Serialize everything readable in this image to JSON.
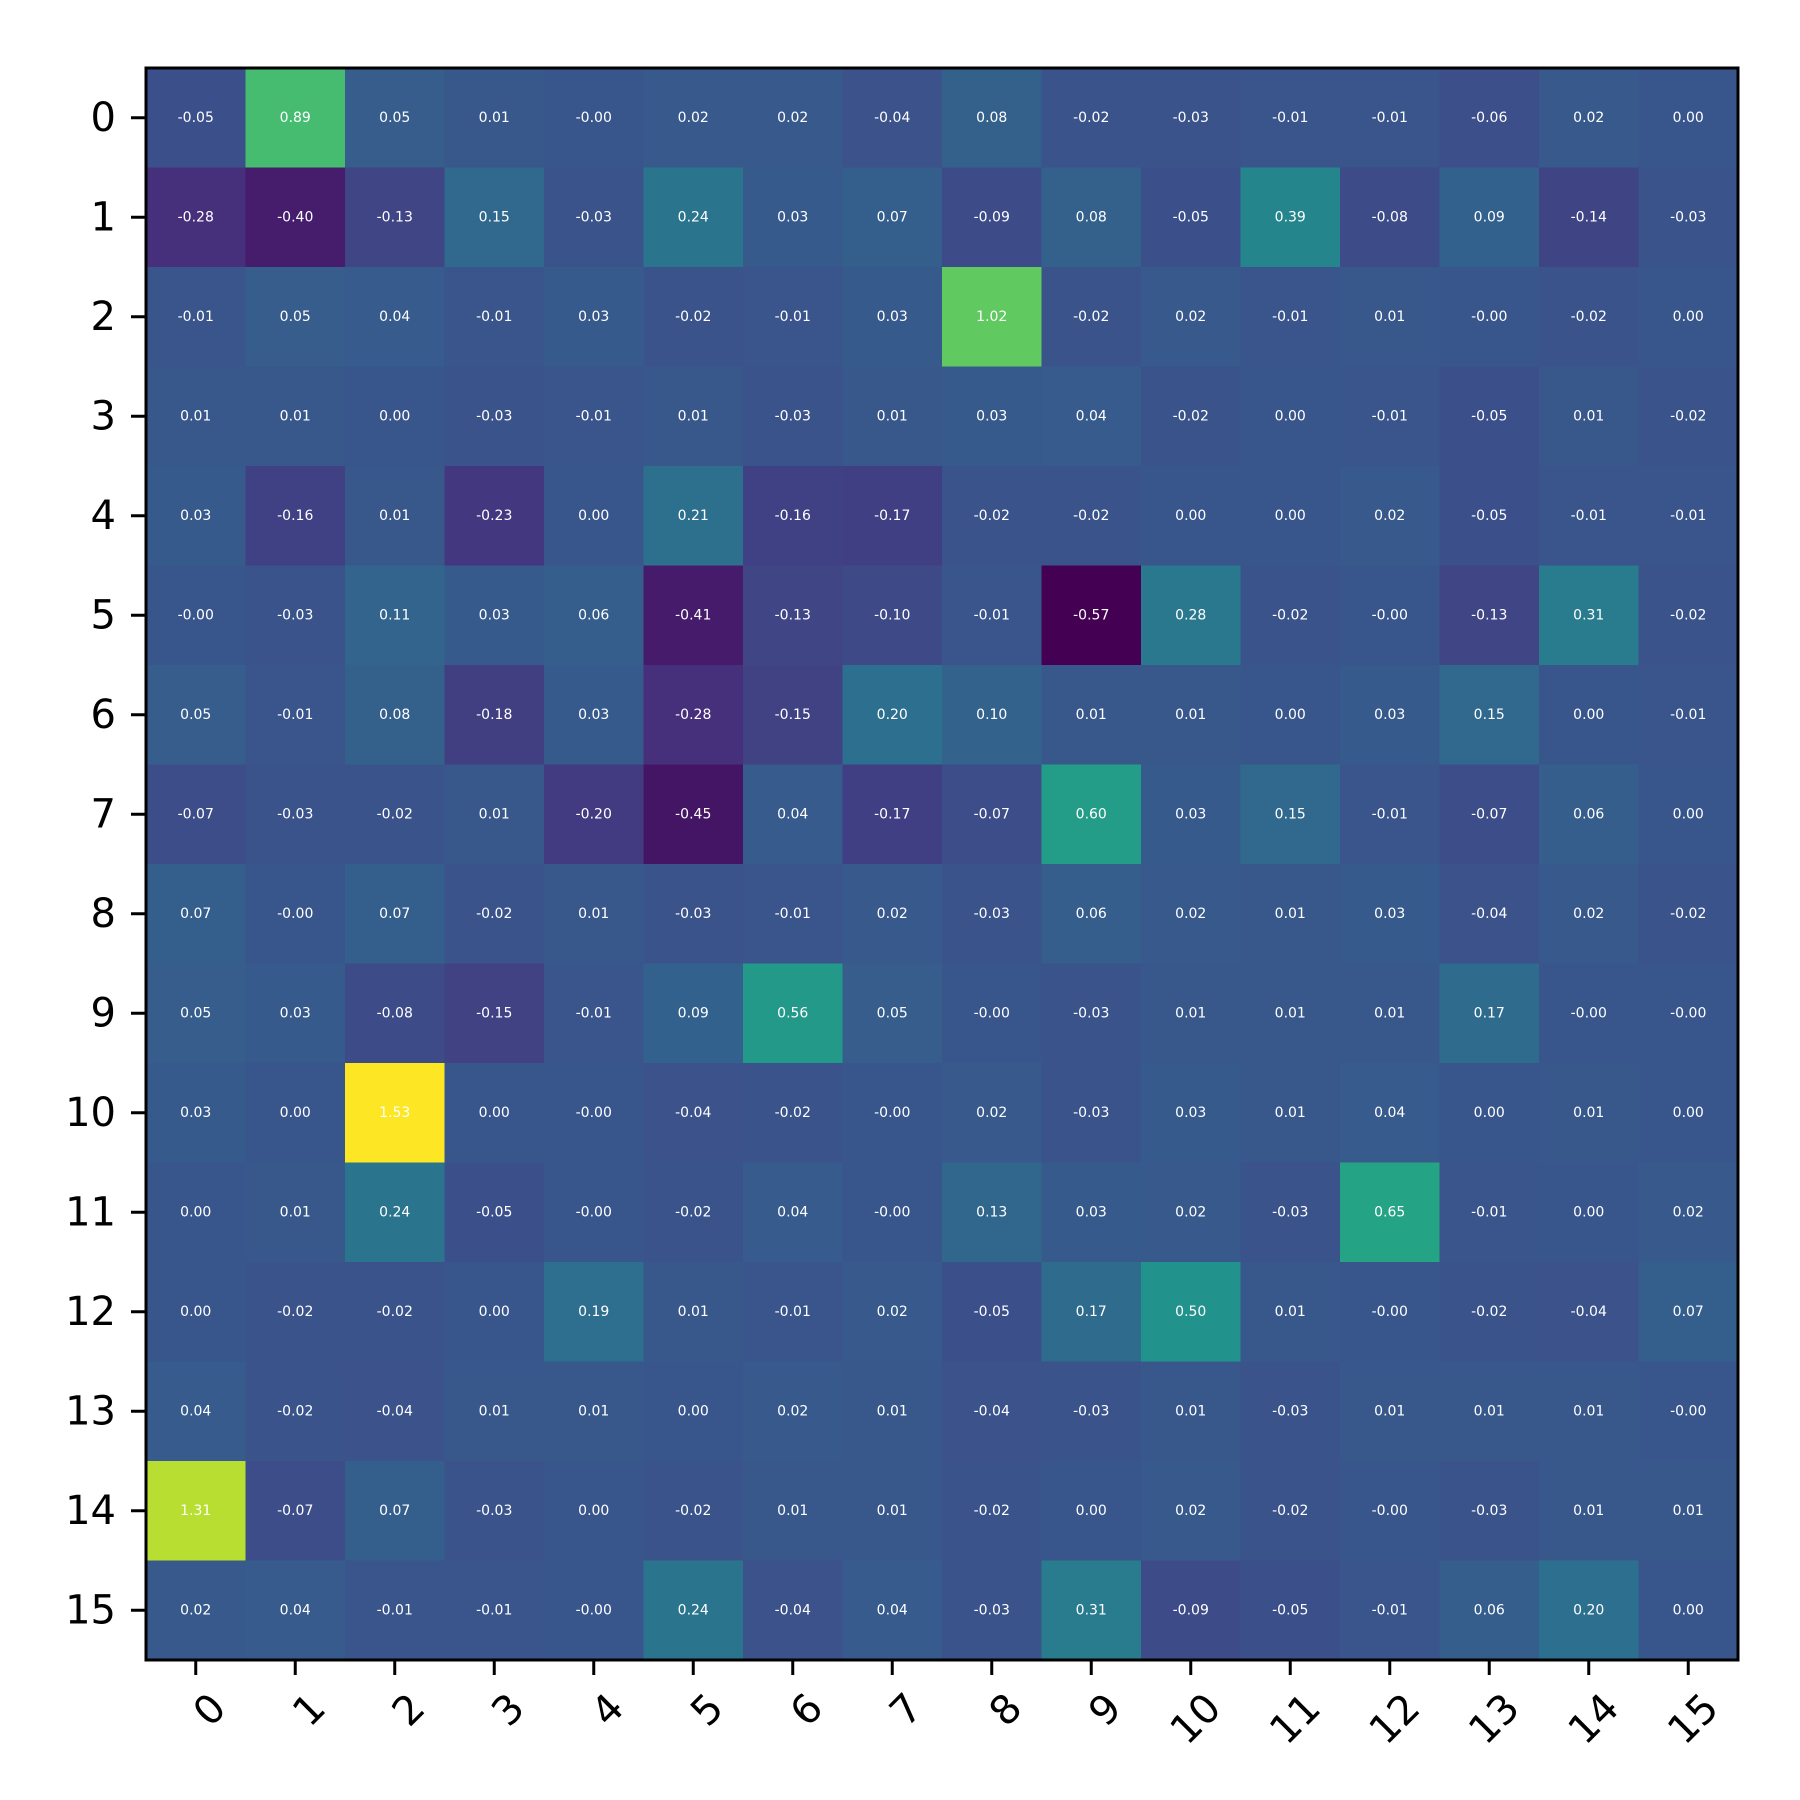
{
  "chart_data": {
    "type": "heatmap",
    "title": "",
    "xlabel": "",
    "ylabel": "",
    "colormap": "viridis",
    "color_range": [
      -0.57,
      1.53
    ],
    "grid": false,
    "value_format": "2 decimals",
    "x_categories": [
      "0",
      "1",
      "2",
      "3",
      "4",
      "5",
      "6",
      "7",
      "8",
      "9",
      "10",
      "11",
      "12",
      "13",
      "14",
      "15"
    ],
    "y_categories": [
      "0",
      "1",
      "2",
      "3",
      "4",
      "5",
      "6",
      "7",
      "8",
      "9",
      "10",
      "11",
      "12",
      "13",
      "14",
      "15"
    ],
    "cell_labels": [
      [
        "-0.05",
        "0.89",
        "0.05",
        "0.01",
        "-0.00",
        "0.02",
        "0.02",
        "-0.04",
        "0.08",
        "-0.02",
        "-0.03",
        "-0.01",
        "-0.01",
        "-0.06",
        "0.02",
        "0.00"
      ],
      [
        "-0.28",
        "-0.40",
        "-0.13",
        "0.15",
        "-0.03",
        "0.24",
        "0.03",
        "0.07",
        "-0.09",
        "0.08",
        "-0.05",
        "0.39",
        "-0.08",
        "0.09",
        "-0.14",
        "-0.03"
      ],
      [
        "-0.01",
        "0.05",
        "0.04",
        "-0.01",
        "0.03",
        "-0.02",
        "-0.01",
        "0.03",
        "1.02",
        "-0.02",
        "0.02",
        "-0.01",
        "0.01",
        "-0.00",
        "-0.02",
        "0.00"
      ],
      [
        "0.01",
        "0.01",
        "0.00",
        "-0.03",
        "-0.01",
        "0.01",
        "-0.03",
        "0.01",
        "0.03",
        "0.04",
        "-0.02",
        "0.00",
        "-0.01",
        "-0.05",
        "0.01",
        "-0.02"
      ],
      [
        "0.03",
        "-0.16",
        "0.01",
        "-0.23",
        "0.00",
        "0.21",
        "-0.16",
        "-0.17",
        "-0.02",
        "-0.02",
        "0.00",
        "0.00",
        "0.02",
        "-0.05",
        "-0.01",
        "-0.01"
      ],
      [
        "-0.00",
        "-0.03",
        "0.11",
        "0.03",
        "0.06",
        "-0.41",
        "-0.13",
        "-0.10",
        "-0.01",
        "-0.57",
        "0.28",
        "-0.02",
        "-0.00",
        "-0.13",
        "0.31",
        "-0.02"
      ],
      [
        "0.05",
        "-0.01",
        "0.08",
        "-0.18",
        "0.03",
        "-0.28",
        "-0.15",
        "0.20",
        "0.10",
        "0.01",
        "0.01",
        "0.00",
        "0.03",
        "0.15",
        "0.00",
        "-0.01"
      ],
      [
        "-0.07",
        "-0.03",
        "-0.02",
        "0.01",
        "-0.20",
        "-0.45",
        "0.04",
        "-0.17",
        "-0.07",
        "0.60",
        "0.03",
        "0.15",
        "-0.01",
        "-0.07",
        "0.06",
        "0.00"
      ],
      [
        "0.07",
        "-0.00",
        "0.07",
        "-0.02",
        "0.01",
        "-0.03",
        "-0.01",
        "0.02",
        "-0.03",
        "0.06",
        "0.02",
        "0.01",
        "0.03",
        "-0.04",
        "0.02",
        "-0.02"
      ],
      [
        "0.05",
        "0.03",
        "-0.08",
        "-0.15",
        "-0.01",
        "0.09",
        "0.56",
        "0.05",
        "-0.00",
        "-0.03",
        "0.01",
        "0.01",
        "0.01",
        "0.17",
        "-0.00",
        "-0.00"
      ],
      [
        "0.03",
        "0.00",
        "1.53",
        "0.00",
        "-0.00",
        "-0.04",
        "-0.02",
        "-0.00",
        "0.02",
        "-0.03",
        "0.03",
        "0.01",
        "0.04",
        "0.00",
        "0.01",
        "0.00"
      ],
      [
        "0.00",
        "0.01",
        "0.24",
        "-0.05",
        "-0.00",
        "-0.02",
        "0.04",
        "-0.00",
        "0.13",
        "0.03",
        "0.02",
        "-0.03",
        "0.65",
        "-0.01",
        "0.00",
        "0.02"
      ],
      [
        "0.00",
        "-0.02",
        "-0.02",
        "0.00",
        "0.19",
        "0.01",
        "-0.01",
        "0.02",
        "-0.05",
        "0.17",
        "0.50",
        "0.01",
        "-0.00",
        "-0.02",
        "-0.04",
        "0.07"
      ],
      [
        "0.04",
        "-0.02",
        "-0.04",
        "0.01",
        "0.01",
        "0.00",
        "0.02",
        "0.01",
        "-0.04",
        "-0.03",
        "0.01",
        "-0.03",
        "0.01",
        "0.01",
        "0.01",
        "-0.00"
      ],
      [
        "1.31",
        "-0.07",
        "0.07",
        "-0.03",
        "0.00",
        "-0.02",
        "0.01",
        "0.01",
        "-0.02",
        "0.00",
        "0.02",
        "-0.02",
        "-0.00",
        "-0.03",
        "0.01",
        "0.01"
      ],
      [
        "0.02",
        "0.04",
        "-0.01",
        "-0.01",
        "-0.00",
        "0.24",
        "-0.04",
        "0.04",
        "-0.03",
        "0.31",
        "-0.09",
        "-0.05",
        "-0.01",
        "0.06",
        "0.20",
        "0.00"
      ]
    ]
  }
}
